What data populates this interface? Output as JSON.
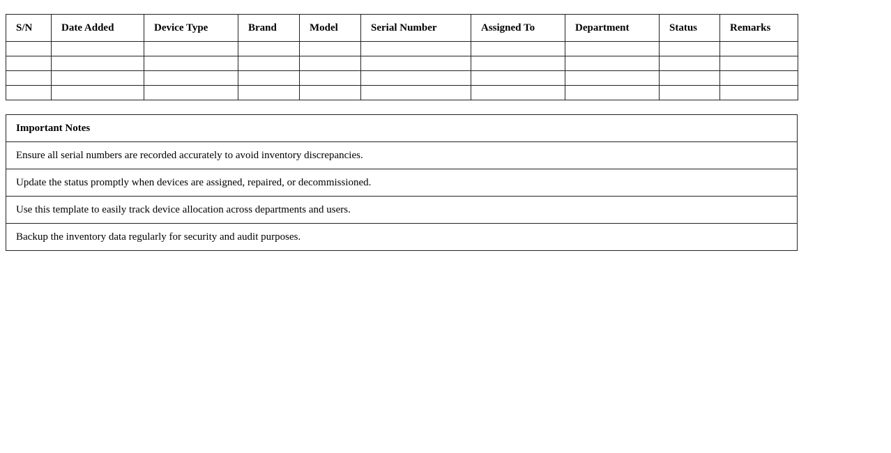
{
  "inventory": {
    "headers": [
      "S/N",
      "Date Added",
      "Device Type",
      "Brand",
      "Model",
      "Serial Number",
      "Assigned To",
      "Department",
      "Status",
      "Remarks"
    ],
    "empty_rows": 4
  },
  "notes": {
    "title": "Important Notes",
    "items": [
      "Ensure all serial numbers are recorded accurately to avoid inventory discrepancies.",
      "Update the status promptly when devices are assigned, repaired, or decommissioned.",
      "Use this template to easily track device allocation across departments and users.",
      "Backup the inventory data regularly for security and audit purposes."
    ]
  }
}
